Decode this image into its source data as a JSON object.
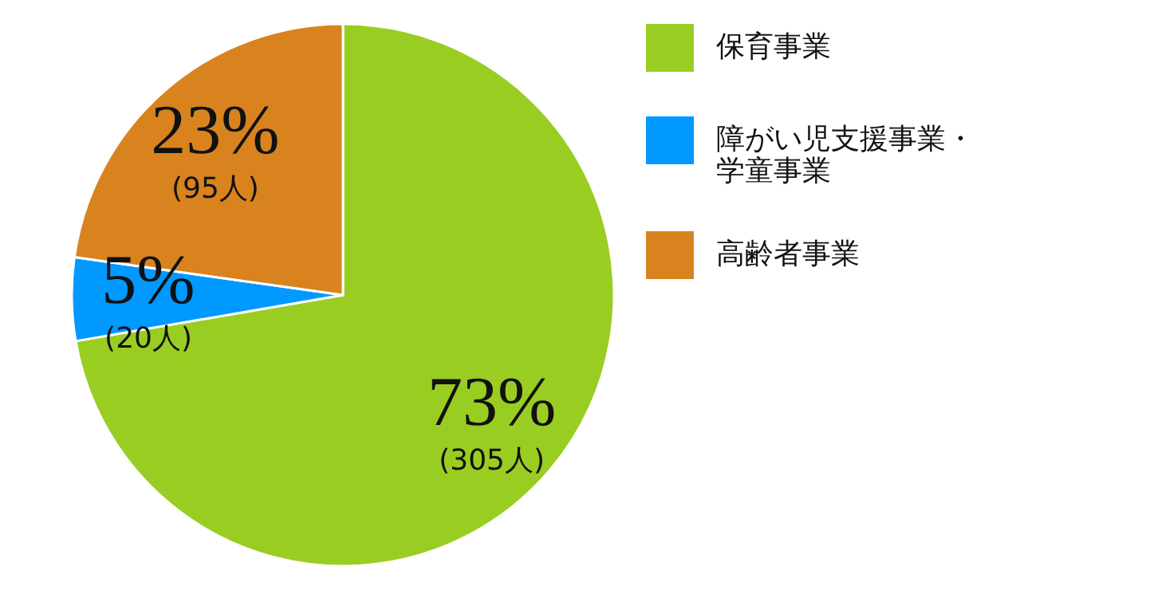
{
  "chart_data": {
    "type": "pie",
    "categories": [
      "保育事業",
      "障がい児支援事業・学童事業",
      "高齢者事業"
    ],
    "values": [
      73,
      5,
      23
    ],
    "colors": [
      "#9acd22",
      "#0099ff",
      "#d9831f"
    ],
    "value_labels": [
      "73%\n(305人)",
      "5%\n(20人)",
      "23%\n(95人)"
    ],
    "legend": "top right"
  }
}
